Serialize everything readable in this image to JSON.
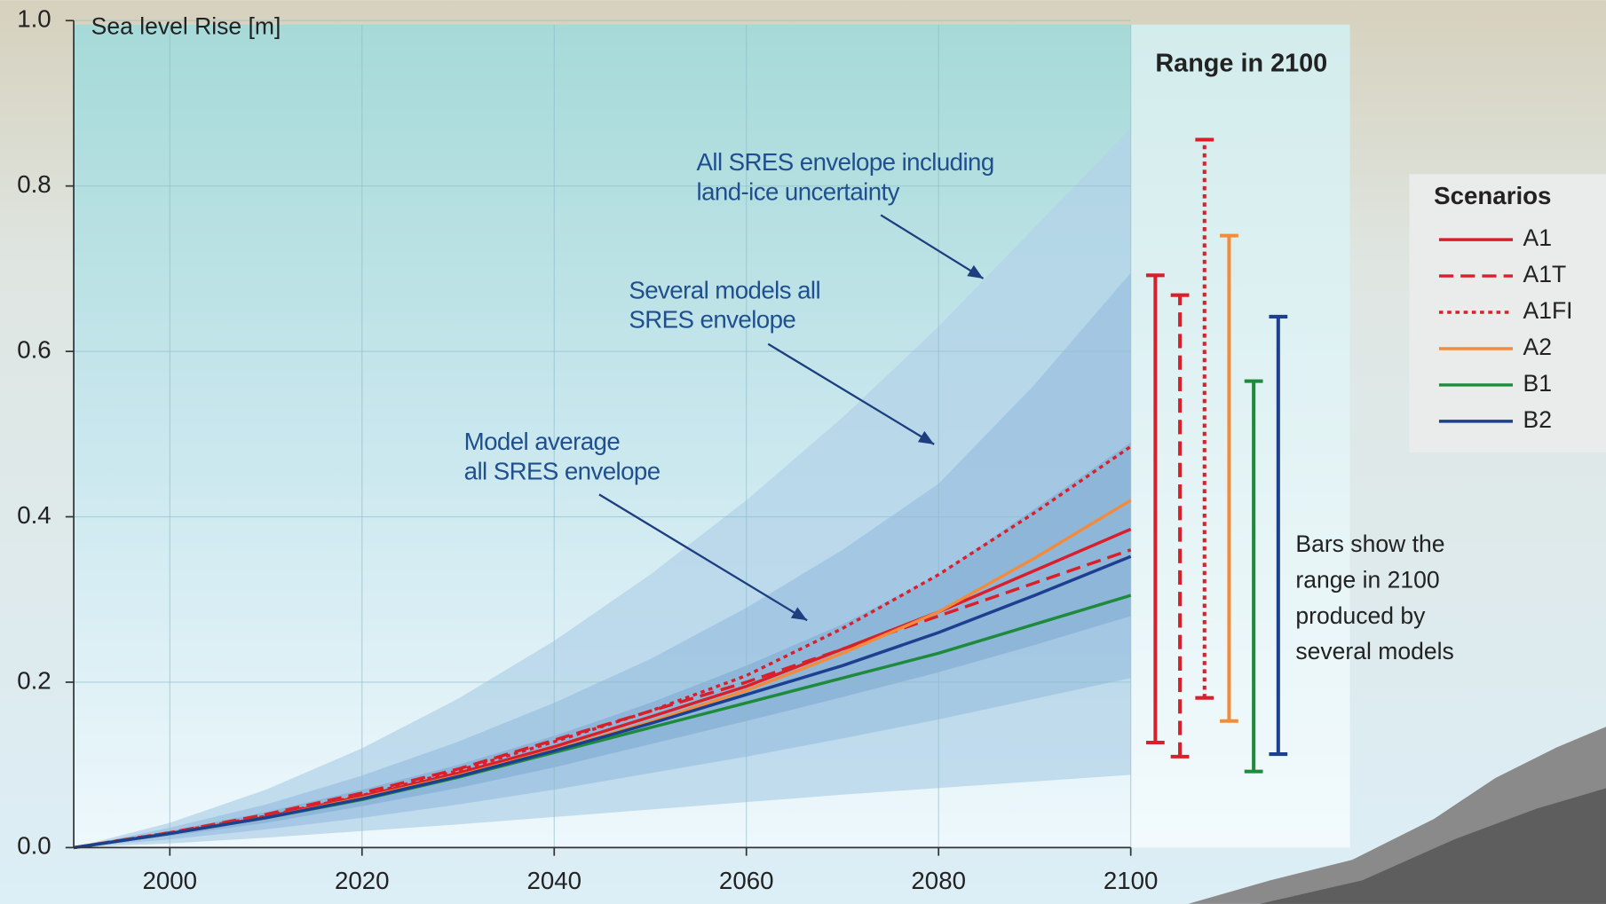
{
  "chart_data": {
    "type": "line",
    "ylabel": "Sea level Rise [m]",
    "range_title": "Range in 2100",
    "legend_title": "Scenarios",
    "note": [
      "Bars show  the",
      "range in 2100",
      "produced by",
      "several models"
    ],
    "x": [
      1990,
      2000,
      2010,
      2020,
      2030,
      2040,
      2050,
      2060,
      2070,
      2080,
      2090,
      2100
    ],
    "xlim": [
      1990,
      2100
    ],
    "xticks": [
      2000,
      2020,
      2040,
      2060,
      2080,
      2100
    ],
    "ylim": [
      0,
      1
    ],
    "yticks": [
      {
        "value": 0,
        "label": "0.0"
      },
      0.2,
      0.4,
      0.6,
      0.8,
      {
        "value": 1,
        "label": "1.0"
      }
    ],
    "grid": true,
    "envelopes": [
      {
        "label": [
          "All SRES envelope including",
          "land-ice uncertainty"
        ],
        "color": "#b3d3e8",
        "upper": [
          0,
          0.03,
          0.07,
          0.12,
          0.18,
          0.25,
          0.33,
          0.42,
          0.52,
          0.63,
          0.75,
          0.87
        ],
        "lower": [
          0,
          0.005,
          0.012,
          0.02,
          0.028,
          0.037,
          0.046,
          0.055,
          0.064,
          0.072,
          0.08,
          0.088
        ]
      },
      {
        "label": [
          "Several models all",
          "SRES envelope"
        ],
        "color": "#9cc2e0",
        "upper": [
          0,
          0.024,
          0.052,
          0.087,
          0.128,
          0.175,
          0.228,
          0.29,
          0.36,
          0.44,
          0.56,
          0.695
        ],
        "lower": [
          0,
          0.01,
          0.022,
          0.036,
          0.052,
          0.07,
          0.09,
          0.11,
          0.132,
          0.155,
          0.18,
          0.205
        ]
      },
      {
        "label": [
          "Model average",
          "all SRES envelope"
        ],
        "color": "#86b0d6",
        "upper": [
          0,
          0.02,
          0.043,
          0.07,
          0.1,
          0.135,
          0.175,
          0.22,
          0.27,
          0.33,
          0.41,
          0.49
        ],
        "lower": [
          0,
          0.014,
          0.03,
          0.05,
          0.072,
          0.097,
          0.125,
          0.153,
          0.182,
          0.212,
          0.245,
          0.28
        ]
      }
    ],
    "series": [
      {
        "name": "A1",
        "color": "#d9202a",
        "dash": "solid",
        "values": [
          0,
          0.017,
          0.037,
          0.062,
          0.09,
          0.122,
          0.158,
          0.195,
          0.24,
          0.285,
          0.335,
          0.385
        ],
        "range_2100": [
          0.127,
          0.692
        ]
      },
      {
        "name": "A1T",
        "color": "#d9202a",
        "dash": "dashed",
        "values": [
          0,
          0.018,
          0.04,
          0.066,
          0.095,
          0.13,
          0.165,
          0.2,
          0.24,
          0.28,
          0.32,
          0.36
        ],
        "range_2100": [
          0.11,
          0.668
        ]
      },
      {
        "name": "A1FI",
        "color": "#d9202a",
        "dash": "dotted",
        "values": [
          0,
          0.018,
          0.038,
          0.063,
          0.093,
          0.128,
          0.165,
          0.208,
          0.265,
          0.33,
          0.405,
          0.485
        ],
        "range_2100": [
          0.181,
          0.856
        ]
      },
      {
        "name": "A2",
        "color": "#f28c3c",
        "dash": "solid",
        "values": [
          0,
          0.017,
          0.036,
          0.06,
          0.087,
          0.118,
          0.152,
          0.19,
          0.235,
          0.285,
          0.35,
          0.42
        ],
        "range_2100": [
          0.153,
          0.74
        ]
      },
      {
        "name": "B1",
        "color": "#1e8a3c",
        "dash": "solid",
        "values": [
          0,
          0.017,
          0.036,
          0.058,
          0.085,
          0.115,
          0.145,
          0.175,
          0.205,
          0.235,
          0.27,
          0.305
        ],
        "range_2100": [
          0.092,
          0.564
        ]
      },
      {
        "name": "B2",
        "color": "#1d3f8f",
        "dash": "solid",
        "values": [
          0,
          0.017,
          0.036,
          0.059,
          0.086,
          0.117,
          0.15,
          0.185,
          0.22,
          0.26,
          0.305,
          0.352
        ],
        "range_2100": [
          0.113,
          0.642
        ]
      }
    ]
  }
}
